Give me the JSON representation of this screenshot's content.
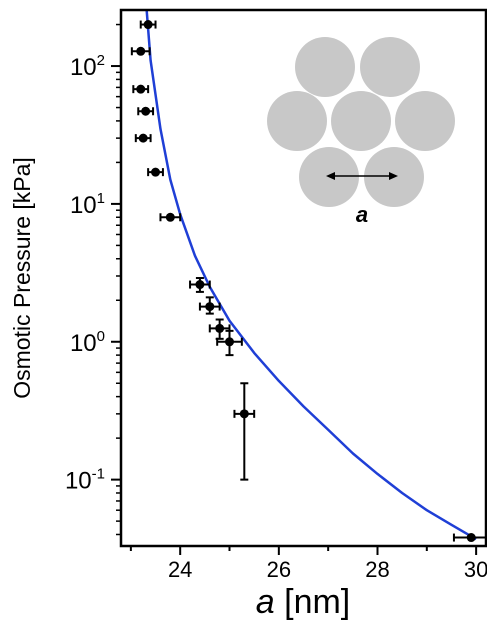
{
  "chart_data": {
    "type": "scatter",
    "xlabel_var": "a",
    "xlabel_unit": " [nm]",
    "ylabel": "Osmotic Pressure [kPa]",
    "xscale": "linear",
    "yscale": "log",
    "xlim": [
      22.8,
      30.2
    ],
    "ylim": [
      0.033,
      255
    ],
    "xticks": [
      {
        "value": 24,
        "label": "24"
      },
      {
        "value": 26,
        "label": "26"
      },
      {
        "value": 28,
        "label": "28"
      },
      {
        "value": 30,
        "label": "30"
      }
    ],
    "yticks": [
      {
        "value": 0.1,
        "base": "10",
        "exp": "-1"
      },
      {
        "value": 1,
        "base": "10",
        "exp": "0"
      },
      {
        "value": 10,
        "base": "10",
        "exp": "1"
      },
      {
        "value": 100,
        "base": "10",
        "exp": "2"
      }
    ],
    "grid": false,
    "series": [
      {
        "type": "scatter_errorbars",
        "color": "#000000",
        "points": [
          {
            "x": 23.35,
            "y": 200,
            "xerr": 0.15
          },
          {
            "x": 23.2,
            "y": 128,
            "xerr": 0.18
          },
          {
            "x": 23.2,
            "y": 68,
            "xerr": 0.15
          },
          {
            "x": 23.3,
            "y": 47,
            "xerr": 0.15
          },
          {
            "x": 23.25,
            "y": 30,
            "xerr": 0.15
          },
          {
            "x": 23.5,
            "y": 17,
            "xerr": 0.15
          },
          {
            "x": 23.8,
            "y": 8,
            "xerr": 0.2
          },
          {
            "x": 24.4,
            "y": 2.6,
            "xerr": 0.2,
            "yerr_low": 2.3,
            "yerr_high": 2.9
          },
          {
            "x": 24.6,
            "y": 1.8,
            "xerr": 0.2,
            "yerr_low": 1.6,
            "yerr_high": 2.1
          },
          {
            "x": 24.8,
            "y": 1.25,
            "xerr": 0.2,
            "yerr_low": 1.05,
            "yerr_high": 1.45
          },
          {
            "x": 25.0,
            "y": 1.0,
            "xerr": 0.25,
            "yerr_low": 0.8,
            "yerr_high": 1.2
          },
          {
            "x": 25.3,
            "y": 0.3,
            "xerr": 0.2,
            "yerr_low": 0.1,
            "yerr_high": 0.5
          },
          {
            "x": 29.9,
            "y": 0.038,
            "xerr": 0.35
          }
        ]
      },
      {
        "type": "fit_line",
        "color": "#1f3fd6",
        "x": [
          23.32,
          23.4,
          23.6,
          23.8,
          24.0,
          24.3,
          24.6,
          25.0,
          25.5,
          26.0,
          26.5,
          27.0,
          27.5,
          28.0,
          28.5,
          29.0,
          29.5,
          30.0
        ],
        "y": [
          255,
          110,
          35,
          15,
          8.4,
          4.2,
          2.5,
          1.42,
          0.83,
          0.52,
          0.34,
          0.23,
          0.155,
          0.11,
          0.08,
          0.06,
          0.047,
          0.037
        ]
      }
    ],
    "inset": {
      "label": "a",
      "fill": "#c8c8c8"
    }
  }
}
